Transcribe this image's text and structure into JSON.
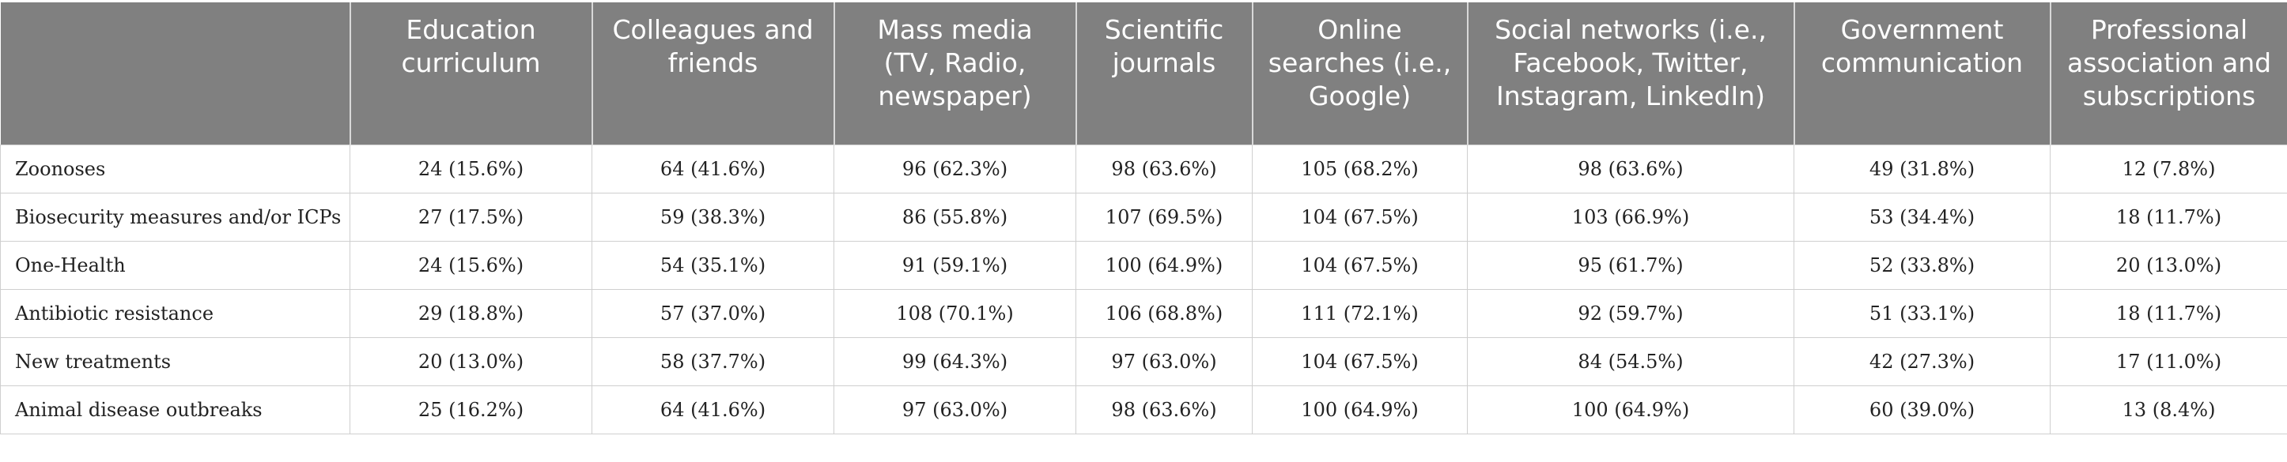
{
  "table": {
    "headers": [
      "",
      "Education curriculum",
      "Colleagues and friends",
      "Mass media (TV, Radio, newspaper)",
      "Scientific journals",
      "Online searches (i.e., Google)",
      "Social networks (i.e., Facebook, Twitter, Instagram, LinkedIn)",
      "Government communication",
      "Professional association and subscriptions"
    ],
    "rows": [
      [
        "Zoonoses",
        "24 (15.6%)",
        "64 (41.6%)",
        "96 (62.3%)",
        "98 (63.6%)",
        "105 (68.2%)",
        "98 (63.6%)",
        "49 (31.8%)",
        "12 (7.8%)"
      ],
      [
        "Biosecurity measures and/or ICPs",
        "27 (17.5%)",
        "59 (38.3%)",
        "86 (55.8%)",
        "107 (69.5%)",
        "104 (67.5%)",
        "103 (66.9%)",
        "53 (34.4%)",
        "18 (11.7%)"
      ],
      [
        "One-Health",
        "24 (15.6%)",
        "54 (35.1%)",
        "91 (59.1%)",
        "100 (64.9%)",
        "104 (67.5%)",
        "95 (61.7%)",
        "52 (33.8%)",
        "20 (13.0%)"
      ],
      [
        "Antibiotic resistance",
        "29 (18.8%)",
        "57 (37.0%)",
        "108 (70.1%)",
        "106 (68.8%)",
        "111 (72.1%)",
        "92 (59.7%)",
        "51 (33.1%)",
        "18 (11.7%)"
      ],
      [
        "New treatments",
        "20 (13.0%)",
        "58 (37.7%)",
        "99 (64.3%)",
        "97 (63.0%)",
        "104 (67.5%)",
        "84 (54.5%)",
        "42 (27.3%)",
        "17 (11.0%)"
      ],
      [
        "Animal disease outbreaks",
        "25 (16.2%)",
        "64 (41.6%)",
        "97 (63.0%)",
        "98 (63.6%)",
        "100 (64.9%)",
        "100 (64.9%)",
        "60 (39.0%)",
        "13 (8.4%)"
      ]
    ]
  }
}
